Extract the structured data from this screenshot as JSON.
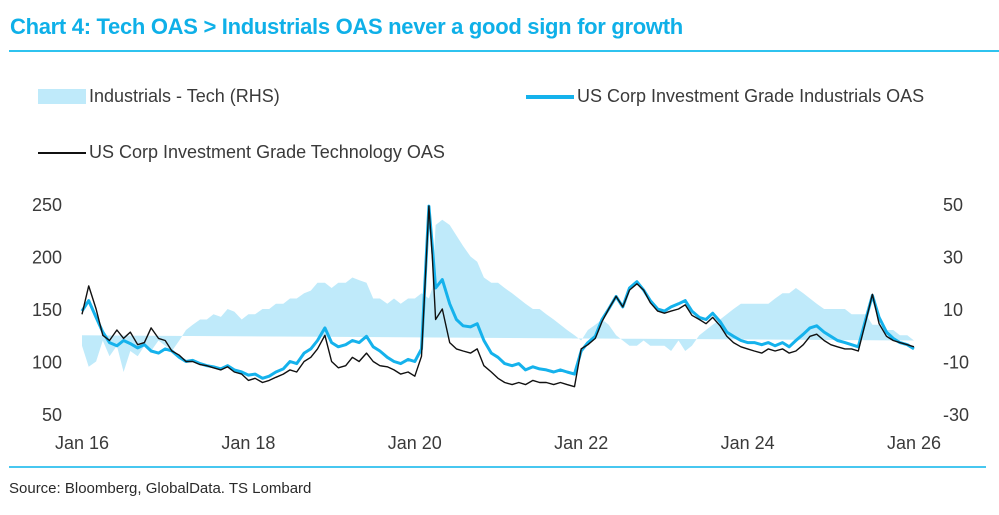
{
  "title": "Chart 4: Tech OAS > Industrials OAS never a good sign for growth",
  "source": "Source: Bloomberg, GlobalData. TS Lombard",
  "colors": {
    "title": "#0fb0e8",
    "industrials_line": "#15b2ec",
    "tech_line": "#111111",
    "spread_area": "#bfeafa",
    "rule": "#2fc3ef"
  },
  "legend": [
    {
      "label": "Industrials - Tech (RHS)",
      "kind": "area"
    },
    {
      "label": "US Corp Investment Grade Industrials OAS",
      "kind": "line-blue"
    },
    {
      "label": "US Corp Investment Grade Technology OAS",
      "kind": "line-black"
    }
  ],
  "chart_data": {
    "type": "line",
    "title": "Chart 4: Tech OAS > Industrials OAS never a good sign for growth",
    "xlabel": "",
    "ylabel": "",
    "y2label": "",
    "x_tick_labels": [
      "Jan 16",
      "Jan 18",
      "Jan 20",
      "Jan 22",
      "Jan 24",
      "Jan 26"
    ],
    "x_tick_values": [
      2016.0,
      2018.0,
      2020.0,
      2022.0,
      2024.0,
      2026.0
    ],
    "xlim": [
      2016.0,
      2026.0
    ],
    "ylim": [
      50,
      250
    ],
    "y_ticks": [
      250,
      200,
      150,
      100,
      50
    ],
    "y2lim": [
      -30,
      50
    ],
    "y2_ticks": [
      50,
      30,
      10,
      -10,
      -30
    ],
    "grid": false,
    "legend_position": "top",
    "x": [
      2016.0,
      2016.08,
      2016.17,
      2016.25,
      2016.33,
      2016.42,
      2016.5,
      2016.58,
      2016.67,
      2016.75,
      2016.83,
      2016.92,
      2017.0,
      2017.08,
      2017.17,
      2017.25,
      2017.33,
      2017.42,
      2017.5,
      2017.58,
      2017.67,
      2017.75,
      2017.83,
      2017.92,
      2018.0,
      2018.08,
      2018.17,
      2018.25,
      2018.33,
      2018.42,
      2018.5,
      2018.58,
      2018.67,
      2018.75,
      2018.83,
      2018.92,
      2019.0,
      2019.08,
      2019.17,
      2019.25,
      2019.33,
      2019.42,
      2019.5,
      2019.58,
      2019.67,
      2019.75,
      2019.83,
      2019.92,
      2020.0,
      2020.08,
      2020.17,
      2020.21,
      2020.25,
      2020.33,
      2020.42,
      2020.5,
      2020.58,
      2020.67,
      2020.75,
      2020.83,
      2020.92,
      2021.0,
      2021.08,
      2021.17,
      2021.25,
      2021.33,
      2021.42,
      2021.5,
      2021.58,
      2021.67,
      2021.75,
      2021.83,
      2021.92,
      2022.0,
      2022.08,
      2022.17,
      2022.25,
      2022.33,
      2022.42,
      2022.5,
      2022.58,
      2022.67,
      2022.75,
      2022.83,
      2022.92,
      2023.0,
      2023.08,
      2023.17,
      2023.25,
      2023.33,
      2023.42,
      2023.5,
      2023.58,
      2023.67,
      2023.75,
      2023.83,
      2023.92,
      2024.0,
      2024.08,
      2024.17,
      2024.25,
      2024.33,
      2024.42,
      2024.5,
      2024.58,
      2024.67,
      2024.75,
      2024.83,
      2024.92,
      2025.0,
      2025.08,
      2025.17,
      2025.25,
      2025.33,
      2025.42,
      2025.5,
      2025.58,
      2025.67,
      2025.75,
      2025.83,
      2025.92,
      2026.0
    ],
    "series": [
      {
        "name": "US Corp Investment Grade Industrials OAS",
        "axis": "left",
        "values": [
          148,
          158,
          142,
          128,
          118,
          115,
          120,
          117,
          113,
          116,
          110,
          108,
          112,
          110,
          104,
          100,
          101,
          98,
          96,
          95,
          93,
          96,
          92,
          90,
          87,
          88,
          84,
          86,
          90,
          93,
          100,
          98,
          108,
          112,
          120,
          132,
          118,
          114,
          116,
          120,
          118,
          124,
          114,
          110,
          104,
          100,
          98,
          102,
          100,
          112,
          248,
          210,
          170,
          178,
          155,
          140,
          134,
          133,
          136,
          120,
          108,
          104,
          98,
          96,
          98,
          92,
          95,
          93,
          92,
          90,
          92,
          90,
          88,
          110,
          118,
          124,
          140,
          150,
          162,
          152,
          170,
          176,
          168,
          158,
          150,
          148,
          152,
          155,
          158,
          148,
          142,
          140,
          146,
          138,
          128,
          124,
          120,
          118,
          118,
          116,
          118,
          115,
          118,
          114,
          120,
          126,
          132,
          134,
          128,
          124,
          120,
          118,
          116,
          114,
          140,
          163,
          142,
          128,
          122,
          118,
          116,
          112,
          108,
          104,
          102,
          96,
          100,
          106,
          110
        ]
      },
      {
        "name": "US Corp Investment Grade Technology OAS",
        "axis": "left",
        "values": [
          145,
          172,
          150,
          125,
          120,
          130,
          122,
          128,
          116,
          118,
          132,
          122,
          120,
          110,
          106,
          100,
          100,
          97,
          96,
          94,
          92,
          95,
          90,
          88,
          82,
          84,
          80,
          82,
          85,
          88,
          92,
          90,
          100,
          104,
          112,
          125,
          100,
          94,
          96,
          104,
          100,
          108,
          100,
          96,
          95,
          92,
          88,
          90,
          86,
          105,
          248,
          200,
          140,
          150,
          118,
          112,
          110,
          108,
          112,
          96,
          90,
          84,
          80,
          78,
          80,
          78,
          82,
          80,
          80,
          78,
          80,
          78,
          76,
          112,
          116,
          122,
          138,
          150,
          162,
          152,
          168,
          174,
          168,
          156,
          148,
          146,
          148,
          150,
          154,
          144,
          140,
          136,
          142,
          134,
          124,
          118,
          114,
          112,
          110,
          108,
          112,
          110,
          112,
          108,
          110,
          116,
          124,
          126,
          120,
          116,
          114,
          112,
          112,
          110,
          138,
          164,
          136,
          124,
          120,
          118,
          116,
          114,
          114,
          118,
          115,
          112,
          118,
          126,
          138
        ]
      },
      {
        "name": "Industrials - Tech (RHS)",
        "axis": "right",
        "type": "area",
        "values": [
          -4,
          -12,
          -10,
          -2,
          -8,
          -4,
          -14,
          -6,
          -8,
          -4,
          -6,
          -2,
          -4,
          -6,
          -2,
          2,
          4,
          6,
          6,
          8,
          7,
          10,
          9,
          6,
          8,
          8,
          10,
          10,
          12,
          12,
          14,
          14,
          16,
          17,
          20,
          20,
          18,
          20,
          20,
          22,
          21,
          20,
          14,
          14,
          12,
          14,
          12,
          14,
          14,
          16,
          14,
          18,
          42,
          44,
          42,
          38,
          34,
          30,
          28,
          22,
          20,
          20,
          18,
          16,
          14,
          12,
          10,
          10,
          8,
          6,
          4,
          2,
          0,
          -2,
          2,
          4,
          6,
          4,
          0,
          -2,
          -4,
          -4,
          -2,
          -4,
          -4,
          -4,
          -6,
          -2,
          -6,
          -4,
          0,
          2,
          4,
          6,
          8,
          10,
          12,
          12,
          12,
          12,
          12,
          14,
          16,
          16,
          18,
          16,
          14,
          12,
          10,
          10,
          10,
          10,
          8,
          8,
          8,
          4,
          4,
          2,
          2,
          0,
          0,
          -2,
          -4,
          -8,
          -10,
          -14,
          -18,
          -20,
          -24
        ]
      }
    ]
  }
}
